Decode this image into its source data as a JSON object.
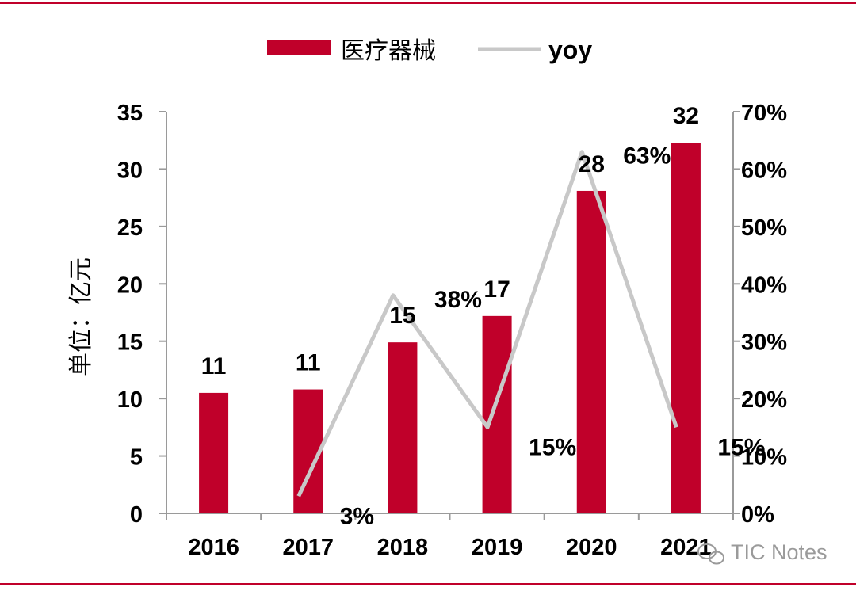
{
  "chart_data": {
    "type": "bar",
    "title": "",
    "ylabel": "单位：亿元",
    "y2label": "",
    "categories": [
      "2016",
      "2017",
      "2018",
      "2019",
      "2020",
      "2021"
    ],
    "category_tick_labels": [
      "2016",
      "2017",
      "2018",
      "2019",
      "2020",
      "2021"
    ],
    "series": [
      {
        "name": "医疗器械",
        "type": "bar",
        "axis": "left",
        "values": [
          10.5,
          10.8,
          14.9,
          17.2,
          28.1,
          32.3
        ],
        "data_labels": [
          "11",
          "11",
          "15",
          "17",
          "28",
          "32"
        ]
      },
      {
        "name": "yoy",
        "type": "line",
        "axis": "right",
        "values": [
          null,
          3,
          38,
          15,
          63,
          15
        ],
        "data_labels": [
          null,
          "3%",
          "38%",
          "15%",
          "63%",
          "15%"
        ]
      }
    ],
    "ylim": [
      0,
      35
    ],
    "yticks": [
      "0",
      "5",
      "10",
      "15",
      "20",
      "25",
      "30",
      "35"
    ],
    "y2lim": [
      0,
      70
    ],
    "y2ticks": [
      "0%",
      "10%",
      "20%",
      "30%",
      "40%",
      "50%",
      "60%",
      "70%"
    ],
    "legend": "top-center",
    "grid": false,
    "colors": {
      "bar": "#c0002a",
      "line": "#c8c8c8",
      "frame": "#c0002a",
      "axis": "#9a9a9a"
    }
  },
  "watermark": {
    "text": "TIC Notes"
  }
}
